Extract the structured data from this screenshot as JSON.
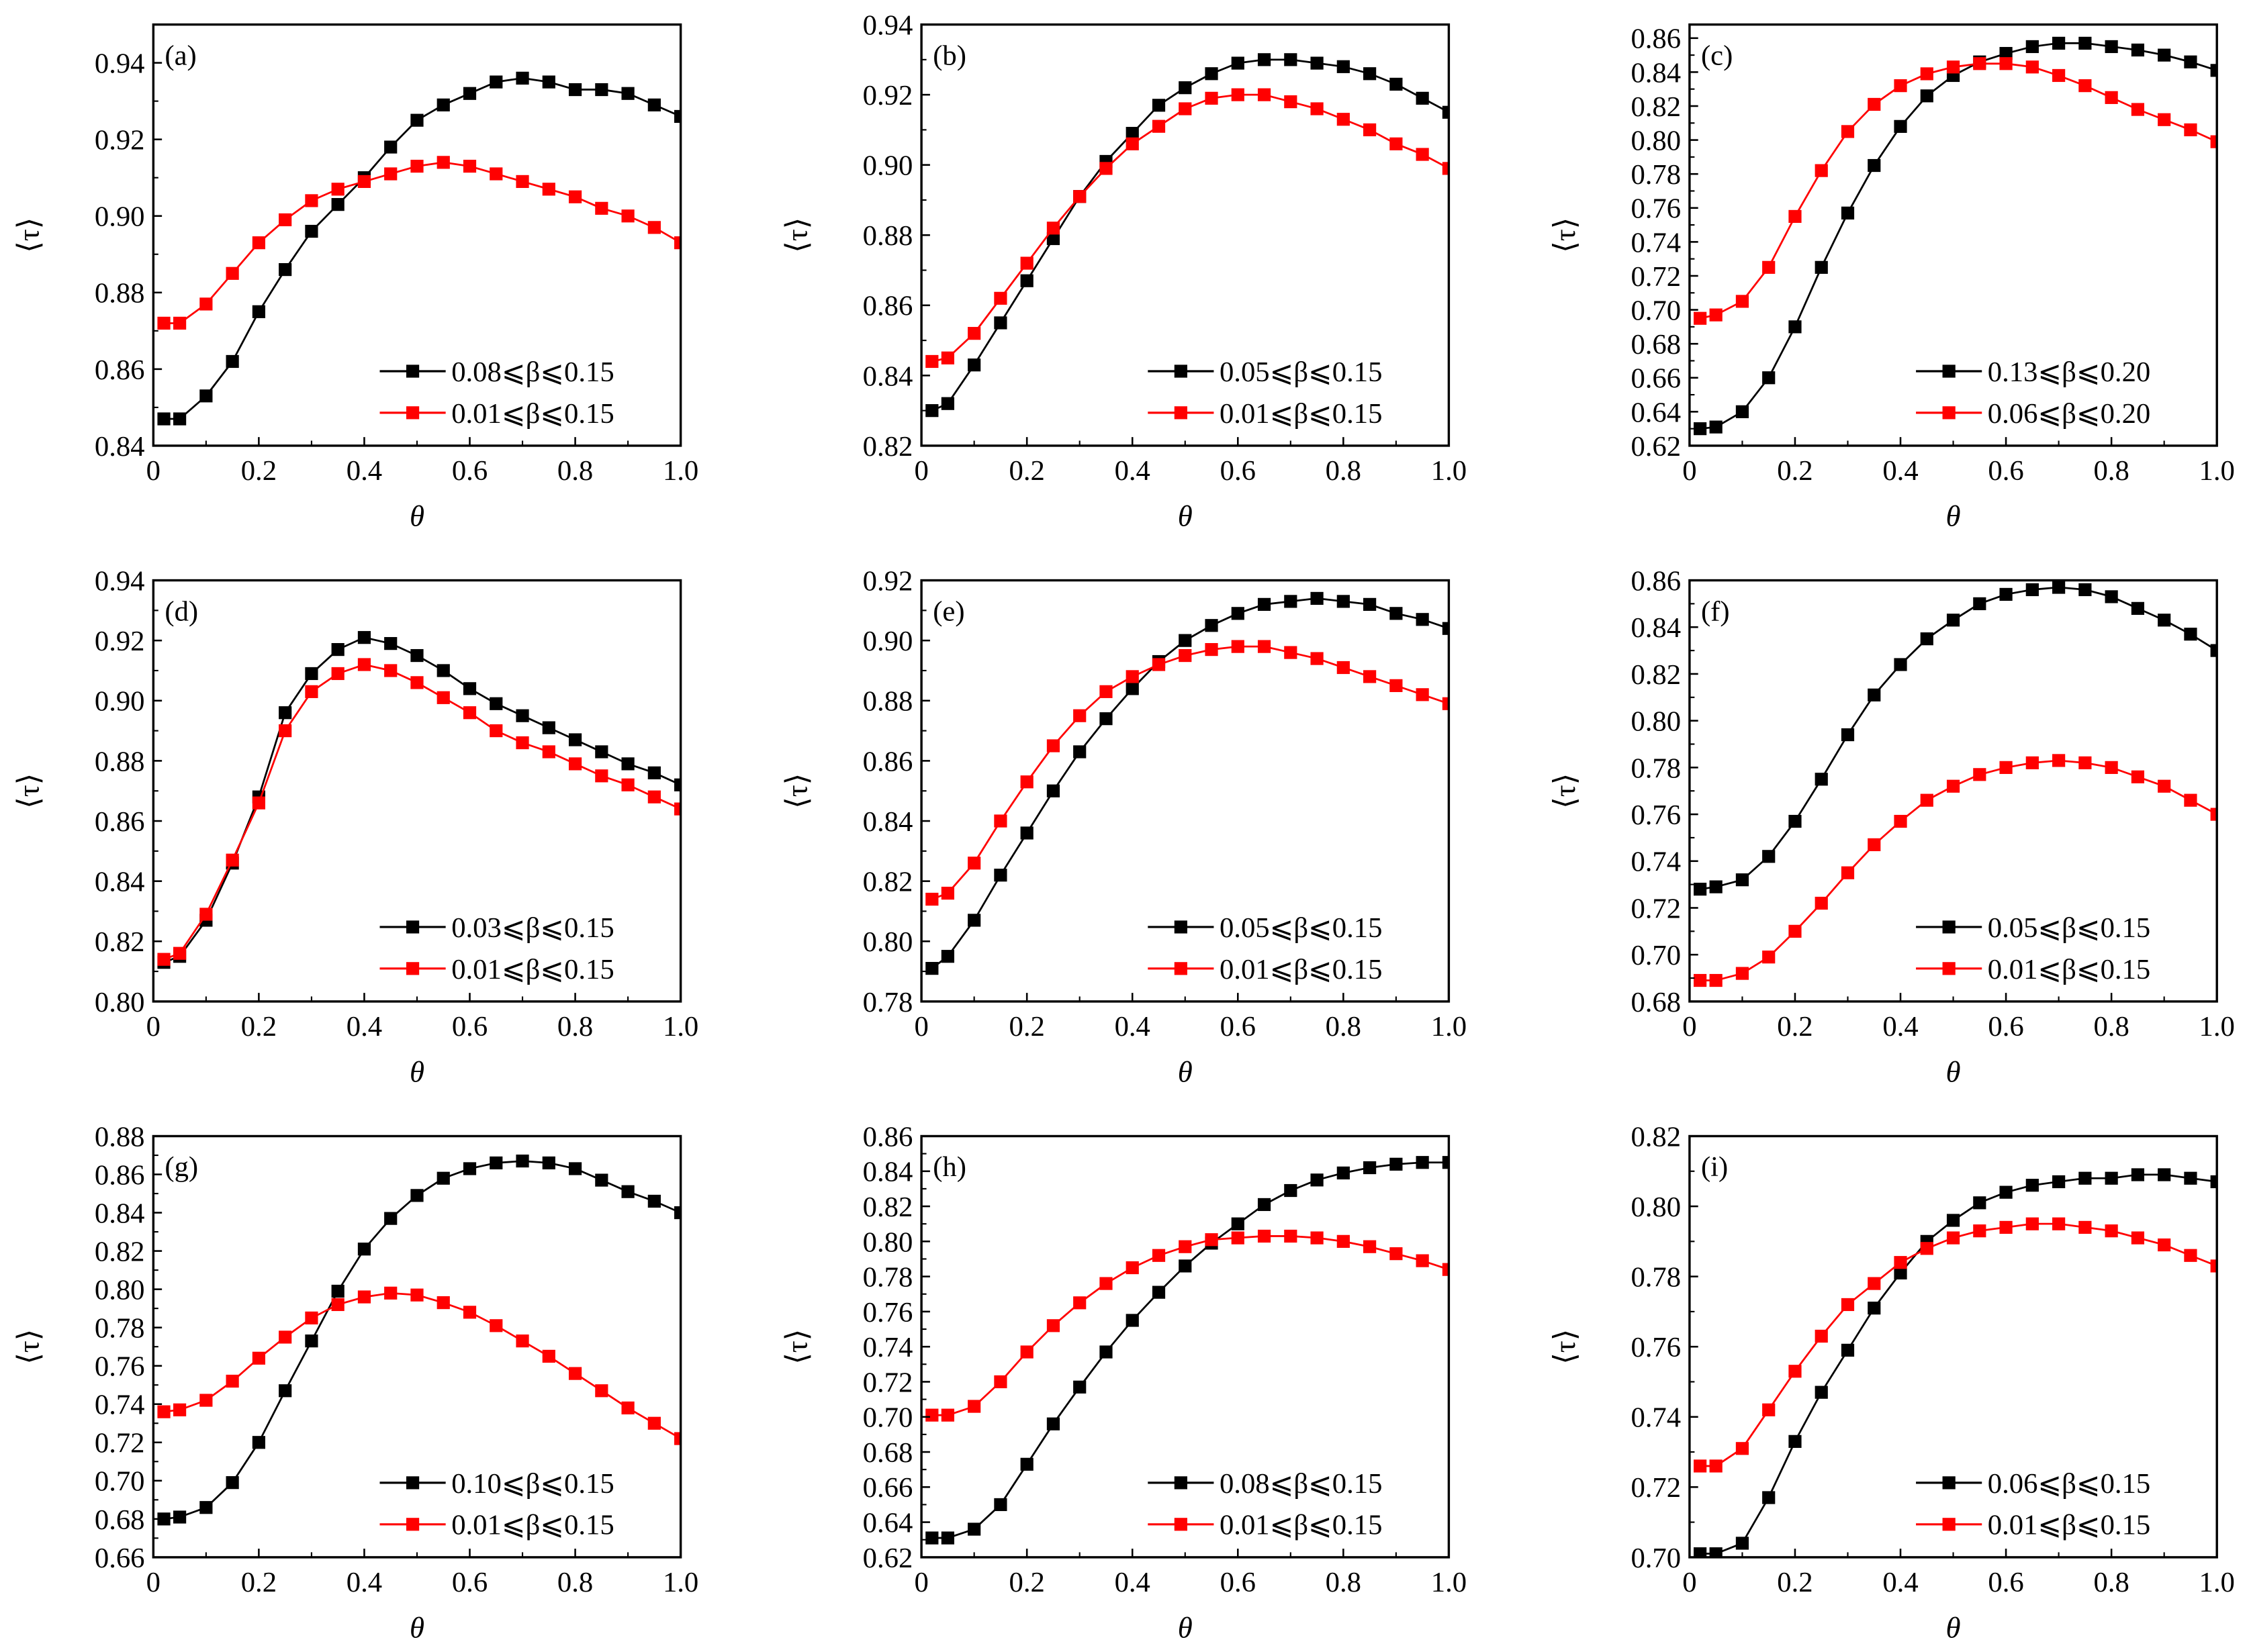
{
  "colors": {
    "series1": "#000000",
    "series2": "#ff0000"
  },
  "chart_data": [
    {
      "type": "line",
      "panel_label": "(a)",
      "xlabel": "θ",
      "ylabel": "⟨τ⟩",
      "xlim": [
        0,
        1.0
      ],
      "ylim": [
        0.84,
        0.95
      ],
      "xticks": [
        "0",
        "0.2",
        "0.4",
        "0.6",
        "0.8",
        "1.0"
      ],
      "yticks": [
        "0.84",
        "0.86",
        "0.88",
        "0.90",
        "0.92",
        "0.94"
      ],
      "legend": "bottom-right",
      "x": [
        0.02,
        0.05,
        0.1,
        0.15,
        0.2,
        0.25,
        0.3,
        0.35,
        0.4,
        0.45,
        0.5,
        0.55,
        0.6,
        0.65,
        0.7,
        0.75,
        0.8,
        0.85,
        0.9,
        0.95,
        1.0
      ],
      "series": [
        {
          "name": "0.08⩽β⩽0.15",
          "values": [
            0.847,
            0.847,
            0.853,
            0.862,
            0.875,
            0.886,
            0.896,
            0.903,
            0.91,
            0.918,
            0.925,
            0.929,
            0.932,
            0.935,
            0.936,
            0.935,
            0.933,
            0.933,
            0.932,
            0.929,
            0.926
          ]
        },
        {
          "name": "0.01⩽β⩽0.15",
          "values": [
            0.872,
            0.872,
            0.877,
            0.885,
            0.893,
            0.899,
            0.904,
            0.907,
            0.909,
            0.911,
            0.913,
            0.914,
            0.913,
            0.911,
            0.909,
            0.907,
            0.905,
            0.902,
            0.9,
            0.897,
            0.893
          ]
        }
      ]
    },
    {
      "type": "line",
      "panel_label": "(b)",
      "xlabel": "θ",
      "ylabel": "⟨τ⟩",
      "xlim": [
        0,
        1.0
      ],
      "ylim": [
        0.82,
        0.94
      ],
      "xticks": [
        "0",
        "0.2",
        "0.4",
        "0.6",
        "0.8",
        "1.0"
      ],
      "yticks": [
        "0.82",
        "0.84",
        "0.86",
        "0.88",
        "0.90",
        "0.92",
        "0.94"
      ],
      "legend": "bottom-right",
      "x": [
        0.02,
        0.05,
        0.1,
        0.15,
        0.2,
        0.25,
        0.3,
        0.35,
        0.4,
        0.45,
        0.5,
        0.55,
        0.6,
        0.65,
        0.7,
        0.75,
        0.8,
        0.85,
        0.9,
        0.95,
        1.0
      ],
      "series": [
        {
          "name": "0.05⩽β⩽0.15",
          "values": [
            0.83,
            0.832,
            0.843,
            0.855,
            0.867,
            0.879,
            0.891,
            0.901,
            0.909,
            0.917,
            0.922,
            0.926,
            0.929,
            0.93,
            0.93,
            0.929,
            0.928,
            0.926,
            0.923,
            0.919,
            0.915
          ]
        },
        {
          "name": "0.01⩽β⩽0.15",
          "values": [
            0.844,
            0.845,
            0.852,
            0.862,
            0.872,
            0.882,
            0.891,
            0.899,
            0.906,
            0.911,
            0.916,
            0.919,
            0.92,
            0.92,
            0.918,
            0.916,
            0.913,
            0.91,
            0.906,
            0.903,
            0.899
          ]
        }
      ]
    },
    {
      "type": "line",
      "panel_label": "(c)",
      "xlabel": "θ",
      "ylabel": "⟨τ⟩",
      "xlim": [
        0,
        1.0
      ],
      "ylim": [
        0.62,
        0.868
      ],
      "xticks": [
        "0",
        "0.2",
        "0.4",
        "0.6",
        "0.8",
        "1.0"
      ],
      "yticks": [
        "0.62",
        "0.64",
        "0.66",
        "0.68",
        "0.70",
        "0.72",
        "0.74",
        "0.76",
        "0.78",
        "0.80",
        "0.82",
        "0.84",
        "0.86"
      ],
      "legend": "bottom-right",
      "x": [
        0.02,
        0.05,
        0.1,
        0.15,
        0.2,
        0.25,
        0.3,
        0.35,
        0.4,
        0.45,
        0.5,
        0.55,
        0.6,
        0.65,
        0.7,
        0.75,
        0.8,
        0.85,
        0.9,
        0.95,
        1.0
      ],
      "series": [
        {
          "name": "0.13⩽β⩽0.20",
          "values": [
            0.63,
            0.631,
            0.64,
            0.66,
            0.69,
            0.725,
            0.757,
            0.785,
            0.808,
            0.826,
            0.838,
            0.846,
            0.851,
            0.855,
            0.857,
            0.857,
            0.855,
            0.853,
            0.85,
            0.846,
            0.841
          ]
        },
        {
          "name": "0.06⩽β⩽0.20",
          "values": [
            0.695,
            0.697,
            0.705,
            0.725,
            0.755,
            0.782,
            0.805,
            0.821,
            0.832,
            0.839,
            0.843,
            0.845,
            0.845,
            0.843,
            0.838,
            0.832,
            0.825,
            0.818,
            0.812,
            0.806,
            0.799
          ]
        }
      ]
    },
    {
      "type": "line",
      "panel_label": "(d)",
      "xlabel": "θ",
      "ylabel": "⟨τ⟩",
      "xlim": [
        0,
        1.0
      ],
      "ylim": [
        0.8,
        0.94
      ],
      "xticks": [
        "0",
        "0.2",
        "0.4",
        "0.6",
        "0.8",
        "1.0"
      ],
      "yticks": [
        "0.80",
        "0.82",
        "0.84",
        "0.86",
        "0.88",
        "0.90",
        "0.92",
        "0.94"
      ],
      "legend": "bottom-right",
      "x": [
        0.02,
        0.05,
        0.1,
        0.15,
        0.2,
        0.25,
        0.3,
        0.35,
        0.4,
        0.45,
        0.5,
        0.55,
        0.6,
        0.65,
        0.7,
        0.75,
        0.8,
        0.85,
        0.9,
        0.95,
        1.0
      ],
      "series": [
        {
          "name": "0.03⩽β⩽0.15",
          "values": [
            0.813,
            0.815,
            0.827,
            0.846,
            0.868,
            0.896,
            0.909,
            0.917,
            0.921,
            0.919,
            0.915,
            0.91,
            0.904,
            0.899,
            0.895,
            0.891,
            0.887,
            0.883,
            0.879,
            0.876,
            0.872
          ]
        },
        {
          "name": "0.01⩽β⩽0.15",
          "values": [
            0.814,
            0.816,
            0.829,
            0.847,
            0.866,
            0.89,
            0.903,
            0.909,
            0.912,
            0.91,
            0.906,
            0.901,
            0.896,
            0.89,
            0.886,
            0.883,
            0.879,
            0.875,
            0.872,
            0.868,
            0.864
          ]
        }
      ]
    },
    {
      "type": "line",
      "panel_label": "(e)",
      "xlabel": "θ",
      "ylabel": "⟨τ⟩",
      "xlim": [
        0,
        1.0
      ],
      "ylim": [
        0.78,
        0.92
      ],
      "xticks": [
        "0",
        "0.2",
        "0.4",
        "0.6",
        "0.8",
        "1.0"
      ],
      "yticks": [
        "0.78",
        "0.80",
        "0.82",
        "0.84",
        "0.86",
        "0.88",
        "0.90",
        "0.92"
      ],
      "legend": "bottom-right",
      "x": [
        0.02,
        0.05,
        0.1,
        0.15,
        0.2,
        0.25,
        0.3,
        0.35,
        0.4,
        0.45,
        0.5,
        0.55,
        0.6,
        0.65,
        0.7,
        0.75,
        0.8,
        0.85,
        0.9,
        0.95,
        1.0
      ],
      "series": [
        {
          "name": "0.05⩽β⩽0.15",
          "values": [
            0.791,
            0.795,
            0.807,
            0.822,
            0.836,
            0.85,
            0.863,
            0.874,
            0.884,
            0.893,
            0.9,
            0.905,
            0.909,
            0.912,
            0.913,
            0.914,
            0.913,
            0.912,
            0.909,
            0.907,
            0.904
          ]
        },
        {
          "name": "0.01⩽β⩽0.15",
          "values": [
            0.814,
            0.816,
            0.826,
            0.84,
            0.853,
            0.865,
            0.875,
            0.883,
            0.888,
            0.892,
            0.895,
            0.897,
            0.898,
            0.898,
            0.896,
            0.894,
            0.891,
            0.888,
            0.885,
            0.882,
            0.879
          ]
        }
      ]
    },
    {
      "type": "line",
      "panel_label": "(f)",
      "xlabel": "θ",
      "ylabel": "⟨τ⟩",
      "xlim": [
        0,
        1.0
      ],
      "ylim": [
        0.68,
        0.86
      ],
      "xticks": [
        "0",
        "0.2",
        "0.4",
        "0.6",
        "0.8",
        "1.0"
      ],
      "yticks": [
        "0.68",
        "0.70",
        "0.72",
        "0.74",
        "0.76",
        "0.78",
        "0.80",
        "0.82",
        "0.84",
        "0.86"
      ],
      "legend": "bottom-right",
      "x": [
        0.02,
        0.05,
        0.1,
        0.15,
        0.2,
        0.25,
        0.3,
        0.35,
        0.4,
        0.45,
        0.5,
        0.55,
        0.6,
        0.65,
        0.7,
        0.75,
        0.8,
        0.85,
        0.9,
        0.95,
        1.0
      ],
      "series": [
        {
          "name": "0.05⩽β⩽0.15",
          "values": [
            0.728,
            0.729,
            0.732,
            0.742,
            0.757,
            0.775,
            0.794,
            0.811,
            0.824,
            0.835,
            0.843,
            0.85,
            0.854,
            0.856,
            0.857,
            0.856,
            0.853,
            0.848,
            0.843,
            0.837,
            0.83
          ]
        },
        {
          "name": "0.01⩽β⩽0.15",
          "values": [
            0.689,
            0.689,
            0.692,
            0.699,
            0.71,
            0.722,
            0.735,
            0.747,
            0.757,
            0.766,
            0.772,
            0.777,
            0.78,
            0.782,
            0.783,
            0.782,
            0.78,
            0.776,
            0.772,
            0.766,
            0.76
          ]
        }
      ]
    },
    {
      "type": "line",
      "panel_label": "(g)",
      "xlabel": "θ",
      "ylabel": "⟨τ⟩",
      "xlim": [
        0,
        1.0
      ],
      "ylim": [
        0.66,
        0.88
      ],
      "xticks": [
        "0",
        "0.2",
        "0.4",
        "0.6",
        "0.8",
        "1.0"
      ],
      "yticks": [
        "0.66",
        "0.68",
        "0.70",
        "0.72",
        "0.74",
        "0.76",
        "0.78",
        "0.80",
        "0.82",
        "0.84",
        "0.86",
        "0.88"
      ],
      "legend": "bottom-right",
      "x": [
        0.02,
        0.05,
        0.1,
        0.15,
        0.2,
        0.25,
        0.3,
        0.35,
        0.4,
        0.45,
        0.5,
        0.55,
        0.6,
        0.65,
        0.7,
        0.75,
        0.8,
        0.85,
        0.9,
        0.95,
        1.0
      ],
      "series": [
        {
          "name": "0.10⩽β⩽0.15",
          "values": [
            0.68,
            0.681,
            0.686,
            0.699,
            0.72,
            0.747,
            0.773,
            0.799,
            0.821,
            0.837,
            0.849,
            0.858,
            0.863,
            0.866,
            0.867,
            0.866,
            0.863,
            0.857,
            0.851,
            0.846,
            0.84
          ]
        },
        {
          "name": "0.01⩽β⩽0.15",
          "values": [
            0.736,
            0.737,
            0.742,
            0.752,
            0.764,
            0.775,
            0.785,
            0.792,
            0.796,
            0.798,
            0.797,
            0.793,
            0.788,
            0.781,
            0.773,
            0.765,
            0.756,
            0.747,
            0.738,
            0.73,
            0.722
          ]
        }
      ]
    },
    {
      "type": "line",
      "panel_label": "(h)",
      "xlabel": "θ",
      "ylabel": "⟨τ⟩",
      "xlim": [
        0,
        1.0
      ],
      "ylim": [
        0.62,
        0.86
      ],
      "xticks": [
        "0",
        "0.2",
        "0.4",
        "0.6",
        "0.8",
        "1.0"
      ],
      "yticks": [
        "0.62",
        "0.64",
        "0.66",
        "0.68",
        "0.70",
        "0.72",
        "0.74",
        "0.76",
        "0.78",
        "0.80",
        "0.82",
        "0.84",
        "0.86"
      ],
      "legend": "bottom-right",
      "x": [
        0.02,
        0.05,
        0.1,
        0.15,
        0.2,
        0.25,
        0.3,
        0.35,
        0.4,
        0.45,
        0.5,
        0.55,
        0.6,
        0.65,
        0.7,
        0.75,
        0.8,
        0.85,
        0.9,
        0.95,
        1.0
      ],
      "series": [
        {
          "name": "0.08⩽β⩽0.15",
          "values": [
            0.631,
            0.631,
            0.636,
            0.65,
            0.673,
            0.696,
            0.717,
            0.737,
            0.755,
            0.771,
            0.786,
            0.799,
            0.81,
            0.821,
            0.829,
            0.835,
            0.839,
            0.842,
            0.844,
            0.845,
            0.845
          ]
        },
        {
          "name": "0.01⩽β⩽0.15",
          "values": [
            0.701,
            0.701,
            0.706,
            0.72,
            0.737,
            0.752,
            0.765,
            0.776,
            0.785,
            0.792,
            0.797,
            0.801,
            0.802,
            0.803,
            0.803,
            0.802,
            0.8,
            0.797,
            0.793,
            0.789,
            0.784
          ]
        }
      ]
    },
    {
      "type": "line",
      "panel_label": "(i)",
      "xlabel": "θ",
      "ylabel": "⟨τ⟩",
      "xlim": [
        0,
        1.0
      ],
      "ylim": [
        0.7,
        0.82
      ],
      "xticks": [
        "0",
        "0.2",
        "0.4",
        "0.6",
        "0.8",
        "1.0"
      ],
      "yticks": [
        "0.70",
        "0.72",
        "0.74",
        "0.76",
        "0.78",
        "0.80",
        "0.82"
      ],
      "legend": "bottom-right",
      "x": [
        0.02,
        0.05,
        0.1,
        0.15,
        0.2,
        0.25,
        0.3,
        0.35,
        0.4,
        0.45,
        0.5,
        0.55,
        0.6,
        0.65,
        0.7,
        0.75,
        0.8,
        0.85,
        0.9,
        0.95,
        1.0
      ],
      "series": [
        {
          "name": "0.06⩽β⩽0.15",
          "values": [
            0.701,
            0.701,
            0.704,
            0.717,
            0.733,
            0.747,
            0.759,
            0.771,
            0.781,
            0.79,
            0.796,
            0.801,
            0.804,
            0.806,
            0.807,
            0.808,
            0.808,
            0.809,
            0.809,
            0.808,
            0.807
          ]
        },
        {
          "name": "0.01⩽β⩽0.15",
          "values": [
            0.726,
            0.726,
            0.731,
            0.742,
            0.753,
            0.763,
            0.772,
            0.778,
            0.784,
            0.788,
            0.791,
            0.793,
            0.794,
            0.795,
            0.795,
            0.794,
            0.793,
            0.791,
            0.789,
            0.786,
            0.783
          ]
        }
      ]
    }
  ]
}
